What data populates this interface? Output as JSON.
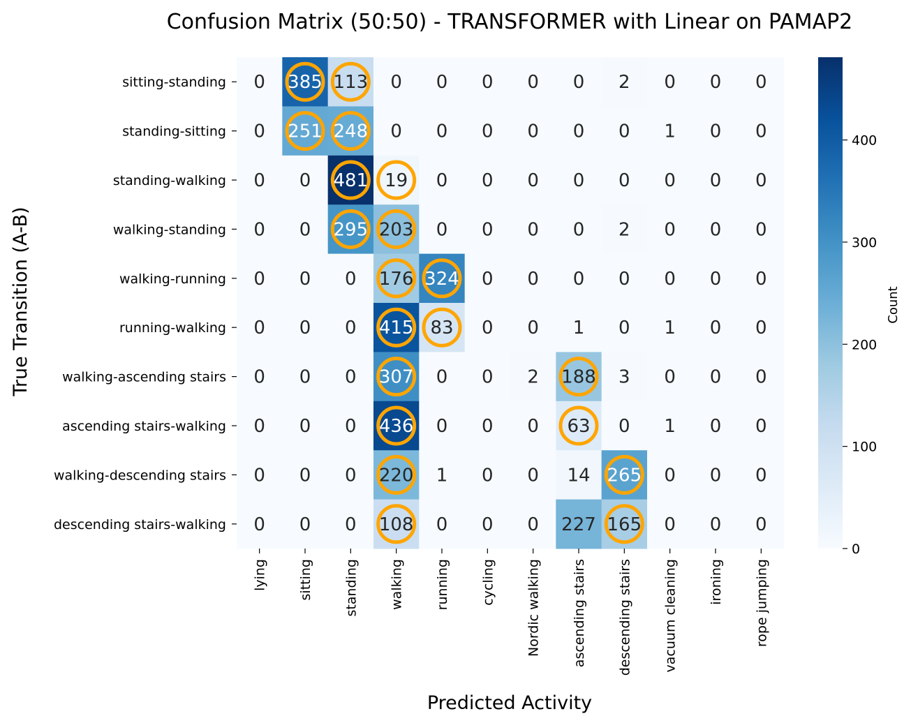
{
  "chart_data": {
    "type": "heatmap",
    "title": "Confusion Matrix (50:50) - TRANSFORMER with Linear on PAMAP2",
    "xlabel": "Predicted Activity",
    "ylabel": "True Transition (A-B)",
    "x_categories": [
      "lying",
      "sitting",
      "standing",
      "walking",
      "running",
      "cycling",
      "Nordic walking",
      "ascending stairs",
      "descending stairs",
      "vacuum cleaning",
      "ironing",
      "rope jumping"
    ],
    "y_categories": [
      "sitting-standing",
      "standing-sitting",
      "standing-walking",
      "walking-standing",
      "walking-running",
      "running-walking",
      "walking-ascending stairs",
      "ascending stairs-walking",
      "walking-descending stairs",
      "descending stairs-walking"
    ],
    "values": [
      [
        0,
        385,
        113,
        0,
        0,
        0,
        0,
        0,
        2,
        0,
        0,
        0
      ],
      [
        0,
        251,
        248,
        0,
        0,
        0,
        0,
        0,
        0,
        1,
        0,
        0
      ],
      [
        0,
        0,
        481,
        19,
        0,
        0,
        0,
        0,
        0,
        0,
        0,
        0
      ],
      [
        0,
        0,
        295,
        203,
        0,
        0,
        0,
        0,
        2,
        0,
        0,
        0
      ],
      [
        0,
        0,
        0,
        176,
        324,
        0,
        0,
        0,
        0,
        0,
        0,
        0
      ],
      [
        0,
        0,
        0,
        415,
        83,
        0,
        0,
        1,
        0,
        1,
        0,
        0
      ],
      [
        0,
        0,
        0,
        307,
        0,
        0,
        2,
        188,
        3,
        0,
        0,
        0
      ],
      [
        0,
        0,
        0,
        436,
        0,
        0,
        0,
        63,
        0,
        1,
        0,
        0
      ],
      [
        0,
        0,
        0,
        220,
        1,
        0,
        0,
        14,
        265,
        0,
        0,
        0
      ],
      [
        0,
        0,
        0,
        108,
        0,
        0,
        0,
        227,
        165,
        0,
        0,
        0
      ]
    ],
    "highlighted_cells": [
      [
        0,
        1
      ],
      [
        0,
        2
      ],
      [
        1,
        1
      ],
      [
        1,
        2
      ],
      [
        2,
        2
      ],
      [
        2,
        3
      ],
      [
        3,
        2
      ],
      [
        3,
        3
      ],
      [
        4,
        3
      ],
      [
        4,
        4
      ],
      [
        5,
        3
      ],
      [
        5,
        4
      ],
      [
        6,
        3
      ],
      [
        6,
        7
      ],
      [
        7,
        3
      ],
      [
        7,
        7
      ],
      [
        8,
        3
      ],
      [
        8,
        8
      ],
      [
        9,
        3
      ],
      [
        9,
        8
      ]
    ],
    "highlight_color": "#FFA500",
    "colormap": "Blues",
    "vmin": 0,
    "vmax": 481,
    "colorbar": {
      "label": "Count",
      "ticks": [
        0,
        100,
        200,
        300,
        400
      ]
    }
  }
}
